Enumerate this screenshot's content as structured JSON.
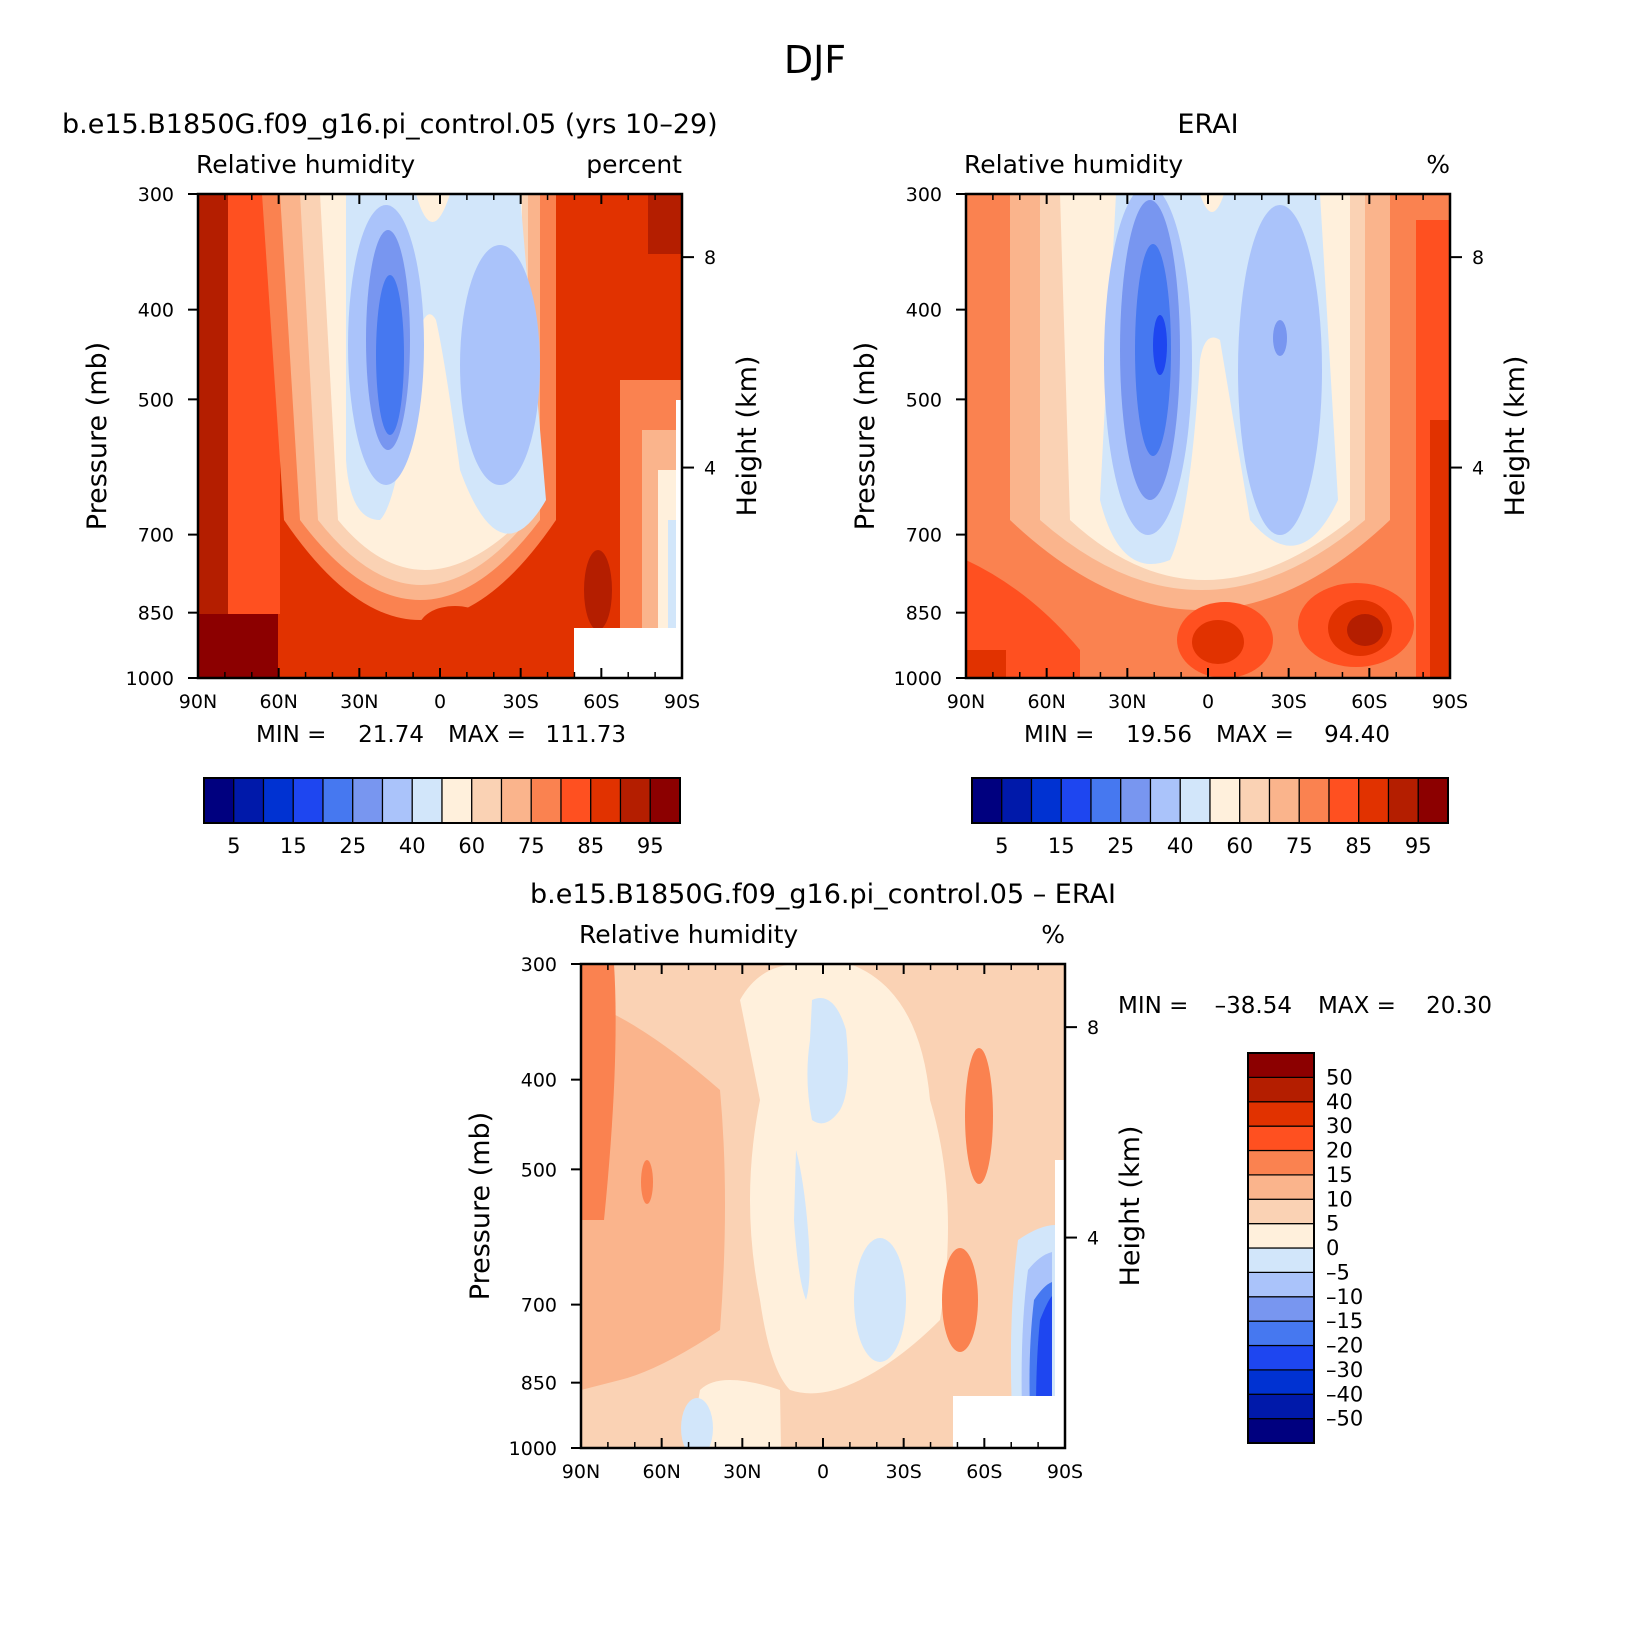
{
  "figure_title": "DJF",
  "colors": {
    "blues": [
      "#00007f",
      "#0019aa",
      "#0032d2",
      "#1e46f0",
      "#4678f0",
      "#7896f0",
      "#aac3fa",
      "#d2e6fa"
    ],
    "reds": [
      "#fff0dc",
      "#fad2b4",
      "#fab48c",
      "#fa8250",
      "#ff5020",
      "#e13200",
      "#b41e00",
      "#8c0000"
    ],
    "missing": "#ffffff"
  },
  "chart_data": [
    {
      "type": "heatmap",
      "id": "model",
      "title": "b.e15.B1850G.f09_g16.pi_control.05 (yrs 10–29)",
      "left_label": "Relative humidity",
      "right_label": "percent",
      "ylabel": "Pressure (mb)",
      "ylabel_right": "Height (km)",
      "x_ticks": [
        "90N",
        "60N",
        "30N",
        "0",
        "30S",
        "60S",
        "90S"
      ],
      "x_tick_values": [
        90,
        60,
        30,
        0,
        -30,
        -60,
        -90
      ],
      "y_ticks": [
        300,
        400,
        500,
        700,
        850,
        1000
      ],
      "y_right_ticks": [
        8,
        4
      ],
      "xlim": [
        90,
        -90
      ],
      "ylim": [
        1000,
        300
      ],
      "stats": {
        "min_label": "MIN =",
        "min": "21.74",
        "max_label": "MAX =",
        "max": "111.73"
      },
      "colorbar": {
        "orientation": "horizontal",
        "levels": [
          5,
          10,
          15,
          20,
          25,
          30,
          40,
          50,
          60,
          70,
          75,
          80,
          85,
          90,
          95
        ],
        "labels": [
          "5",
          "15",
          "25",
          "40",
          "60",
          "75",
          "85",
          "95"
        ]
      }
    },
    {
      "type": "heatmap",
      "id": "obs",
      "title": "ERAI",
      "left_label": "Relative humidity",
      "right_label": "%",
      "ylabel": "Pressure (mb)",
      "ylabel_right": "Height (km)",
      "x_ticks": [
        "90N",
        "60N",
        "30N",
        "0",
        "30S",
        "60S",
        "90S"
      ],
      "x_tick_values": [
        90,
        60,
        30,
        0,
        -30,
        -60,
        -90
      ],
      "y_ticks": [
        300,
        400,
        500,
        700,
        850,
        1000
      ],
      "y_right_ticks": [
        8,
        4
      ],
      "xlim": [
        90,
        -90
      ],
      "ylim": [
        1000,
        300
      ],
      "stats": {
        "min_label": "MIN =",
        "min": "19.56",
        "max_label": "MAX =",
        "max": "94.40"
      },
      "colorbar": {
        "orientation": "horizontal",
        "levels": [
          5,
          10,
          15,
          20,
          25,
          30,
          40,
          50,
          60,
          70,
          75,
          80,
          85,
          90,
          95
        ],
        "labels": [
          "5",
          "15",
          "25",
          "40",
          "60",
          "75",
          "85",
          "95"
        ]
      }
    },
    {
      "type": "heatmap",
      "id": "diff",
      "title": "b.e15.B1850G.f09_g16.pi_control.05 – ERAI",
      "left_label": "Relative humidity",
      "right_label": "%",
      "ylabel": "Pressure (mb)",
      "ylabel_right": "Height (km)",
      "x_ticks": [
        "90N",
        "60N",
        "30N",
        "0",
        "30S",
        "60S",
        "90S"
      ],
      "x_tick_values": [
        90,
        60,
        30,
        0,
        -30,
        -60,
        -90
      ],
      "y_ticks": [
        300,
        400,
        500,
        700,
        850,
        1000
      ],
      "y_right_ticks": [
        8,
        4
      ],
      "xlim": [
        90,
        -90
      ],
      "ylim": [
        1000,
        300
      ],
      "stats": {
        "min_label": "MIN =",
        "min": "–38.54",
        "max_label": "MAX =",
        "max": "20.30"
      },
      "colorbar": {
        "orientation": "vertical",
        "levels": [
          -50,
          -40,
          -30,
          -20,
          -15,
          -10,
          -5,
          0,
          5,
          10,
          15,
          20,
          30,
          40,
          50
        ],
        "labels": [
          "50",
          "40",
          "30",
          "20",
          "15",
          "10",
          "5",
          "0",
          "–5",
          "–10",
          "–15",
          "–20",
          "–30",
          "–40",
          "–50"
        ]
      }
    }
  ]
}
